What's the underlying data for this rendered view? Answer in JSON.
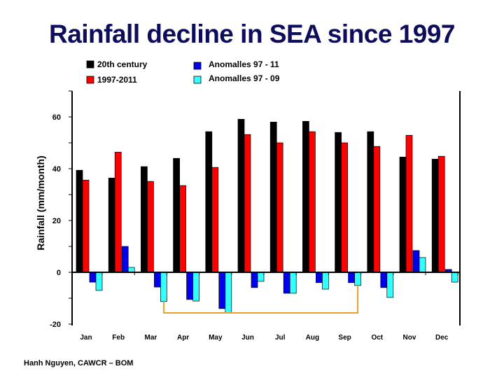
{
  "title": "Rainfall decline in SEA since 1997",
  "footer": "Hanh Nguyen, CAWCR – BOM",
  "chart_data": {
    "type": "bar",
    "title": "Rainfall decline in SEA since 1997",
    "xlabel": "",
    "ylabel": "Rainfall (mm/month)",
    "ylim": [
      -20,
      70
    ],
    "yticks": [
      -20,
      0,
      20,
      40,
      60
    ],
    "ytick_labels": [
      "-20",
      "0",
      "20",
      "40",
      "60"
    ],
    "grid": false,
    "legend_position": "top",
    "categories": [
      "Jan",
      "Feb",
      "Mar",
      "Apr",
      "May",
      "Jun",
      "Jul",
      "Aug",
      "Sep",
      "Oct",
      "Nov",
      "Dec"
    ],
    "series": [
      {
        "name": "20th century",
        "color": "#000000",
        "values": [
          39.4,
          36.4,
          40.8,
          44.0,
          54.3,
          59.1,
          58.0,
          58.3,
          54.0,
          54.3,
          44.5,
          43.7
        ]
      },
      {
        "name": "1997-2011",
        "color": "#ff0000",
        "values": [
          35.6,
          46.4,
          35.1,
          33.5,
          40.5,
          53.2,
          50.0,
          54.3,
          50.0,
          48.6,
          52.9,
          44.8
        ]
      },
      {
        "name": "Anomalles 97 - 11",
        "color": "#0000ee",
        "values": [
          -3.8,
          10.0,
          -5.7,
          -10.5,
          -14.0,
          -5.9,
          -8.1,
          -4.0,
          -4.0,
          -5.9,
          8.4,
          1.1
        ]
      },
      {
        "name": "Anomalles 97 - 09",
        "color": "#33ffff",
        "values": [
          -7.0,
          1.9,
          -11.3,
          -11.1,
          -15.7,
          -3.5,
          -8.1,
          -6.5,
          -5.1,
          -9.7,
          5.7,
          -3.8
        ]
      }
    ],
    "annotations": [
      {
        "type": "bracket",
        "from": "Mar",
        "to": "Sep",
        "color": "#e8a030"
      }
    ]
  }
}
